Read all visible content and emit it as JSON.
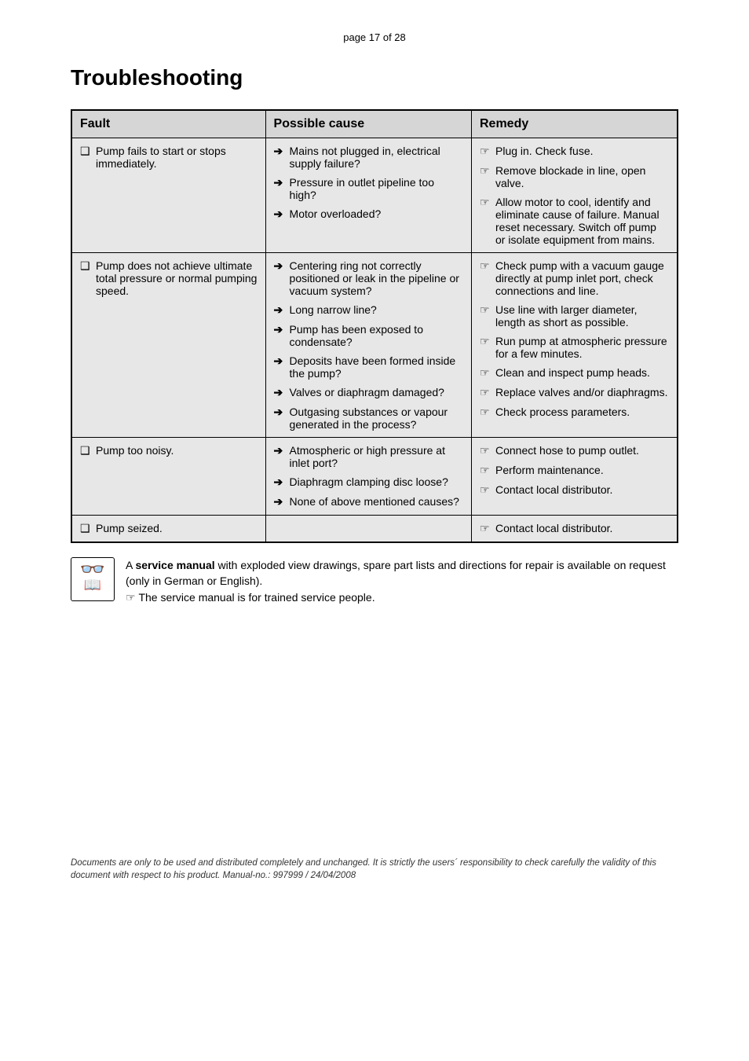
{
  "page_label": "page 17 of 28",
  "heading": "Troubleshooting",
  "table": {
    "headers": [
      "Fault",
      "Possible cause",
      "Remedy"
    ],
    "rows": [
      {
        "fault": {
          "bullet": "❑",
          "text": "Pump fails to start or stops immediately."
        },
        "pairs": [
          {
            "cause": "Mains not plugged in, electrical supply failure?",
            "remedy": "Plug in. Check fuse."
          },
          {
            "cause": "Pressure in outlet pipeline too high?",
            "remedy": "Remove blockade in line, open valve."
          },
          {
            "cause": "Motor overloaded?",
            "remedy": "Allow  motor to cool, identify and eliminate cause of failure. Manual reset necessary. Switch off pump or isolate equipment from mains."
          }
        ]
      },
      {
        "fault": {
          "bullet": "❑",
          "text": "Pump does not achieve ultimate total pressure or normal pumping speed."
        },
        "pairs": [
          {
            "cause": "Centering ring not correctly positioned or leak in the pipeline or vacuum system?",
            "remedy": "Check pump with a vacuum gauge directly at pump inlet port, check connections and line."
          },
          {
            "cause": "Long narrow line?",
            "remedy": "Use line with larger diameter, length as short as possible."
          },
          {
            "cause": "Pump has been exposed to condensate?",
            "remedy": "Run pump at atmospheric pressure for a few minutes."
          },
          {
            "cause": "Deposits have been formed inside the pump?",
            "remedy": "Clean and inspect pump heads."
          },
          {
            "cause": "Valves or diaphragm damaged?",
            "remedy": "Replace valves and/or diaphragms."
          },
          {
            "cause": "Outgasing substances or vapour generated in the process?",
            "remedy": "Check process parameters."
          }
        ]
      },
      {
        "fault": {
          "bullet": "❑",
          "text": "Pump too noisy."
        },
        "pairs": [
          {
            "cause": "Atmospheric or high pressure at inlet port?",
            "remedy": "Connect hose to pump outlet."
          },
          {
            "cause": "Diaphragm clamping disc loose?",
            "remedy": "Perform maintenance."
          },
          {
            "cause": "None of above mentioned causes?",
            "remedy": "Contact local distributor."
          }
        ]
      },
      {
        "fault": {
          "bullet": "❑",
          "text": "Pump seized."
        },
        "pairs": [
          {
            "cause": "",
            "remedy": "Contact local distributor."
          }
        ]
      }
    ],
    "arrow_glyph": "➔",
    "hand_glyph": "☞"
  },
  "note": {
    "line1_a": "A ",
    "line1_b": "service manual",
    "line1_c": " with exploded view drawings, spare part lists and directions for repair is available on request (only in German or English).",
    "line2_bullet": "☞",
    "line2_text": "The service manual is for trained service people."
  },
  "footer": "Documents are only to be used and distributed completely and unchanged. It is strictly the users´ responsibility to check carefully the validity of this document with respect to his product. Manual-no.: 997999 / 24/04/2008"
}
